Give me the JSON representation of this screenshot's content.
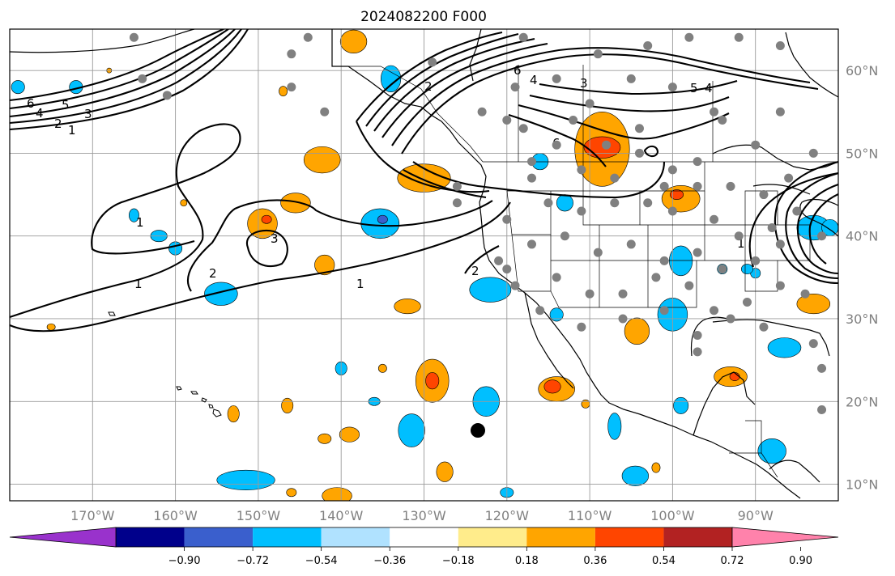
{
  "figure": {
    "title": "2024082200 F000"
  },
  "axes": {
    "lon_labels": [
      "170°W",
      "160°W",
      "150°W",
      "140°W",
      "130°W",
      "120°W",
      "110°W",
      "100°W",
      "90°W"
    ],
    "lat_labels": [
      "60°N",
      "50°N",
      "40°N",
      "30°N",
      "20°N",
      "10°N"
    ],
    "lon_values": [
      -170,
      -160,
      -150,
      -140,
      -130,
      -120,
      -110,
      -100,
      -90
    ],
    "lat_values": [
      60,
      50,
      40,
      30,
      20,
      10
    ],
    "lon_range": [
      -180,
      -80
    ],
    "lat_range": [
      8,
      65
    ]
  },
  "colorbar": {
    "tick_labels": [
      "−0.90",
      "−0.72",
      "−0.54",
      "−0.36",
      "−0.18",
      "0.18",
      "0.36",
      "0.54",
      "0.72",
      "0.90"
    ],
    "colors": [
      "#9932cc",
      "#00008b",
      "#3a5fcd",
      "#00bfff",
      "#b0e2ff",
      "#ffffff",
      "#ffec8b",
      "#ffa500",
      "#ff4500",
      "#b22222",
      "#ff82ab"
    ]
  },
  "contour_labels": [
    "6",
    "4",
    "5",
    "3",
    "2",
    "1",
    "1",
    "2",
    "3",
    "1",
    "2",
    "1",
    "6",
    "4",
    "3",
    "2",
    "6",
    "5",
    "4",
    "1"
  ],
  "marker": {
    "name": "black-dot",
    "lon": -123.5,
    "lat": 16.5
  },
  "station_dots": [
    [
      -165,
      64
    ],
    [
      -164,
      59
    ],
    [
      -146,
      62
    ],
    [
      -144,
      64
    ],
    [
      -129,
      61
    ],
    [
      -142,
      55
    ],
    [
      -161,
      57
    ],
    [
      -146,
      58
    ],
    [
      -118,
      64
    ],
    [
      -109,
      62
    ],
    [
      -103,
      63
    ],
    [
      -98,
      64
    ],
    [
      -92,
      64
    ],
    [
      -87,
      63
    ],
    [
      -105,
      59
    ],
    [
      -100,
      58
    ],
    [
      -95,
      55
    ],
    [
      -112,
      54
    ],
    [
      -108,
      51
    ],
    [
      -104,
      53
    ],
    [
      -97,
      49
    ],
    [
      -94,
      54
    ],
    [
      -90,
      51
    ],
    [
      -87,
      55
    ],
    [
      -118,
      53
    ],
    [
      -114,
      51
    ],
    [
      -111,
      48
    ],
    [
      -107,
      47
    ],
    [
      -101,
      46
    ],
    [
      -97,
      46
    ],
    [
      -93,
      46
    ],
    [
      -89,
      45
    ],
    [
      -86,
      47
    ],
    [
      -83,
      50
    ],
    [
      -117,
      47
    ],
    [
      -115,
      44
    ],
    [
      -111,
      43
    ],
    [
      -107,
      44
    ],
    [
      -103,
      44
    ],
    [
      -100,
      43
    ],
    [
      -95,
      42
    ],
    [
      -92,
      40
    ],
    [
      -88,
      41
    ],
    [
      -85,
      43
    ],
    [
      -120,
      42
    ],
    [
      -117,
      39
    ],
    [
      -113,
      40
    ],
    [
      -109,
      38
    ],
    [
      -105,
      39
    ],
    [
      -101,
      37
    ],
    [
      -97,
      38
    ],
    [
      -94,
      36
    ],
    [
      -90,
      37
    ],
    [
      -87,
      39
    ],
    [
      -82,
      40
    ],
    [
      -121,
      37
    ],
    [
      -119,
      34
    ],
    [
      -114,
      35
    ],
    [
      -110,
      33
    ],
    [
      -106,
      33
    ],
    [
      -102,
      35
    ],
    [
      -98,
      34
    ],
    [
      -95,
      31
    ],
    [
      -91,
      32
    ],
    [
      -87,
      34
    ],
    [
      -84,
      33
    ],
    [
      -116,
      31
    ],
    [
      -111,
      29
    ],
    [
      -106,
      30
    ],
    [
      -101,
      31
    ],
    [
      -97,
      28
    ],
    [
      -93,
      30
    ],
    [
      -89,
      29
    ],
    [
      -83,
      27
    ],
    [
      -82,
      24
    ],
    [
      -97,
      26
    ],
    [
      -82,
      19
    ],
    [
      -120,
      54
    ],
    [
      -126,
      46
    ],
    [
      -126,
      44
    ],
    [
      -117,
      49
    ],
    [
      -123,
      55
    ],
    [
      -119,
      58
    ],
    [
      -114,
      59
    ],
    [
      -110,
      56
    ],
    [
      -104,
      50
    ],
    [
      -100,
      48
    ],
    [
      -120,
      36
    ]
  ],
  "regions": [
    {
      "color": "#00bfff",
      "cx": -179,
      "cy": 58,
      "rx": 0.8,
      "ry": 0.8
    },
    {
      "color": "#00bfff",
      "cx": -172,
      "cy": 58,
      "rx": 0.8,
      "ry": 0.8
    },
    {
      "color": "#00bfff",
      "cx": -165,
      "cy": 42.5,
      "rx": 0.6,
      "ry": 0.8
    },
    {
      "color": "#00bfff",
      "cx": -162,
      "cy": 40,
      "rx": 1.0,
      "ry": 0.7
    },
    {
      "color": "#00bfff",
      "cx": -160,
      "cy": 38.5,
      "rx": 0.8,
      "ry": 0.8
    },
    {
      "color": "#00bfff",
      "cx": -154.5,
      "cy": 33,
      "rx": 2.0,
      "ry": 1.4
    },
    {
      "color": "#00bfff",
      "cx": -135.3,
      "cy": 41.5,
      "rx": 2.3,
      "ry": 1.8
    },
    {
      "color": "#3a5fcd",
      "cx": -135,
      "cy": 42,
      "rx": 0.6,
      "ry": 0.5
    },
    {
      "color": "#00bfff",
      "cx": -122,
      "cy": 33.5,
      "rx": 2.5,
      "ry": 1.5
    },
    {
      "color": "#00bfff",
      "cx": -114,
      "cy": 30.5,
      "rx": 0.8,
      "ry": 0.8
    },
    {
      "color": "#00bfff",
      "cx": -116,
      "cy": 49,
      "rx": 1.0,
      "ry": 1.0
    },
    {
      "color": "#00bfff",
      "cx": -113,
      "cy": 44,
      "rx": 1.0,
      "ry": 1.0
    },
    {
      "color": "#00bfff",
      "cx": -134,
      "cy": 59,
      "rx": 1.2,
      "ry": 1.6
    },
    {
      "color": "#00bfff",
      "cx": -140,
      "cy": 24,
      "rx": 0.7,
      "ry": 0.8
    },
    {
      "color": "#00bfff",
      "cx": -136,
      "cy": 20,
      "rx": 0.7,
      "ry": 0.5
    },
    {
      "color": "#00bfff",
      "cx": -131.5,
      "cy": 16.5,
      "rx": 1.6,
      "ry": 2.0
    },
    {
      "color": "#00bfff",
      "cx": -122.5,
      "cy": 20,
      "rx": 1.6,
      "ry": 1.8
    },
    {
      "color": "#00bfff",
      "cx": -107,
      "cy": 17,
      "rx": 0.8,
      "ry": 1.6
    },
    {
      "color": "#00bfff",
      "cx": -104.5,
      "cy": 11,
      "rx": 1.6,
      "ry": 1.2
    },
    {
      "color": "#00bfff",
      "cx": -99,
      "cy": 19.5,
      "rx": 0.9,
      "ry": 1.0
    },
    {
      "color": "#00bfff",
      "cx": -151.5,
      "cy": 10.5,
      "rx": 3.5,
      "ry": 1.2
    },
    {
      "color": "#00bfff",
      "cx": -120,
      "cy": 9,
      "rx": 0.8,
      "ry": 0.6
    },
    {
      "color": "#00bfff",
      "cx": -100,
      "cy": 30.5,
      "rx": 1.8,
      "ry": 2.0
    },
    {
      "color": "#00bfff",
      "cx": -99,
      "cy": 37,
      "rx": 1.4,
      "ry": 1.8
    },
    {
      "color": "#00bfff",
      "cx": -94,
      "cy": 36,
      "rx": 0.6,
      "ry": 0.6
    },
    {
      "color": "#00bfff",
      "cx": -90,
      "cy": 35.5,
      "rx": 0.6,
      "ry": 0.6
    },
    {
      "color": "#00bfff",
      "cx": -86.5,
      "cy": 26.5,
      "rx": 2.0,
      "ry": 1.2
    },
    {
      "color": "#00bfff",
      "cx": -88,
      "cy": 14,
      "rx": 1.7,
      "ry": 1.5
    },
    {
      "color": "#00bfff",
      "cx": -83,
      "cy": 41,
      "rx": 2.0,
      "ry": 1.5
    },
    {
      "color": "#00bfff",
      "cx": -81,
      "cy": 41,
      "rx": 1.0,
      "ry": 1.0
    },
    {
      "color": "#00bfff",
      "cx": -91,
      "cy": 36,
      "rx": 0.7,
      "ry": 0.6
    },
    {
      "color": "#ffa500",
      "cx": -138.5,
      "cy": 63.5,
      "rx": 1.6,
      "ry": 1.4
    },
    {
      "color": "#ffa500",
      "cx": -147,
      "cy": 57.5,
      "rx": 0.5,
      "ry": 0.6
    },
    {
      "color": "#ffa500",
      "cx": -142.3,
      "cy": 49.2,
      "rx": 2.2,
      "ry": 1.6
    },
    {
      "color": "#ffa500",
      "cx": -145.5,
      "cy": 44,
      "rx": 1.8,
      "ry": 1.2
    },
    {
      "color": "#ffa500",
      "cx": -149.5,
      "cy": 41.5,
      "rx": 1.8,
      "ry": 1.8
    },
    {
      "color": "#ff4500",
      "cx": -149,
      "cy": 42,
      "rx": 0.6,
      "ry": 0.5
    },
    {
      "color": "#ffa500",
      "cx": -142,
      "cy": 36.5,
      "rx": 1.2,
      "ry": 1.2
    },
    {
      "color": "#ffa500",
      "cx": -130,
      "cy": 47,
      "rx": 3.2,
      "ry": 1.7
    },
    {
      "color": "#ffa500",
      "cx": -132,
      "cy": 31.5,
      "rx": 1.6,
      "ry": 0.9
    },
    {
      "color": "#ffa500",
      "cx": -108.5,
      "cy": 50.5,
      "rx": 3.3,
      "ry": 4.5
    },
    {
      "color": "#ff4500",
      "cx": -108.5,
      "cy": 50.7,
      "rx": 2.2,
      "ry": 1.3
    },
    {
      "color": "#ffa500",
      "cx": -99,
      "cy": 44.5,
      "rx": 2.3,
      "ry": 1.6
    },
    {
      "color": "#ff4500",
      "cx": -99.5,
      "cy": 45,
      "rx": 0.8,
      "ry": 0.6
    },
    {
      "color": "#ffa500",
      "cx": -129,
      "cy": 22.5,
      "rx": 2.0,
      "ry": 2.6
    },
    {
      "color": "#ff4500",
      "cx": -129,
      "cy": 22.5,
      "rx": 0.8,
      "ry": 1.0
    },
    {
      "color": "#ffa500",
      "cx": -114,
      "cy": 21.5,
      "rx": 2.2,
      "ry": 1.5
    },
    {
      "color": "#ff4500",
      "cx": -114.5,
      "cy": 21.8,
      "rx": 1.0,
      "ry": 0.8
    },
    {
      "color": "#ffa500",
      "cx": -104.3,
      "cy": 28.5,
      "rx": 1.5,
      "ry": 1.6
    },
    {
      "color": "#ffa500",
      "cx": -93,
      "cy": 23,
      "rx": 2.0,
      "ry": 1.2
    },
    {
      "color": "#ff4500",
      "cx": -92.5,
      "cy": 23,
      "rx": 0.6,
      "ry": 0.5
    },
    {
      "color": "#ffa500",
      "cx": -83,
      "cy": 31.8,
      "rx": 2.0,
      "ry": 1.2
    },
    {
      "color": "#ffa500",
      "cx": -139,
      "cy": 16,
      "rx": 1.2,
      "ry": 0.9
    },
    {
      "color": "#ffa500",
      "cx": -142,
      "cy": 15.5,
      "rx": 0.8,
      "ry": 0.6
    },
    {
      "color": "#ffa500",
      "cx": -153,
      "cy": 18.5,
      "rx": 0.7,
      "ry": 1.0
    },
    {
      "color": "#ffa500",
      "cx": -146.5,
      "cy": 19.5,
      "rx": 0.7,
      "ry": 0.9
    },
    {
      "color": "#ffa500",
      "cx": -127.5,
      "cy": 11.5,
      "rx": 1.0,
      "ry": 1.2
    },
    {
      "color": "#ffa500",
      "cx": -140.5,
      "cy": 8.6,
      "rx": 1.8,
      "ry": 1.0
    },
    {
      "color": "#ffa500",
      "cx": -110.5,
      "cy": 19.7,
      "rx": 0.5,
      "ry": 0.5
    },
    {
      "color": "#ffa500",
      "cx": -146,
      "cy": 9,
      "rx": 0.6,
      "ry": 0.5
    },
    {
      "color": "#ffa500",
      "cx": -135,
      "cy": 24,
      "rx": 0.5,
      "ry": 0.5
    },
    {
      "color": "#ffa500",
      "cx": -102,
      "cy": 12,
      "rx": 0.5,
      "ry": 0.6
    },
    {
      "color": "#ffa500",
      "cx": -175,
      "cy": 29,
      "rx": 0.5,
      "ry": 0.4
    },
    {
      "color": "#ffa500",
      "cx": -168,
      "cy": 60,
      "rx": 0.3,
      "ry": 0.3
    },
    {
      "color": "#ffa500",
      "cx": -159,
      "cy": 44,
      "rx": 0.4,
      "ry": 0.4
    }
  ]
}
